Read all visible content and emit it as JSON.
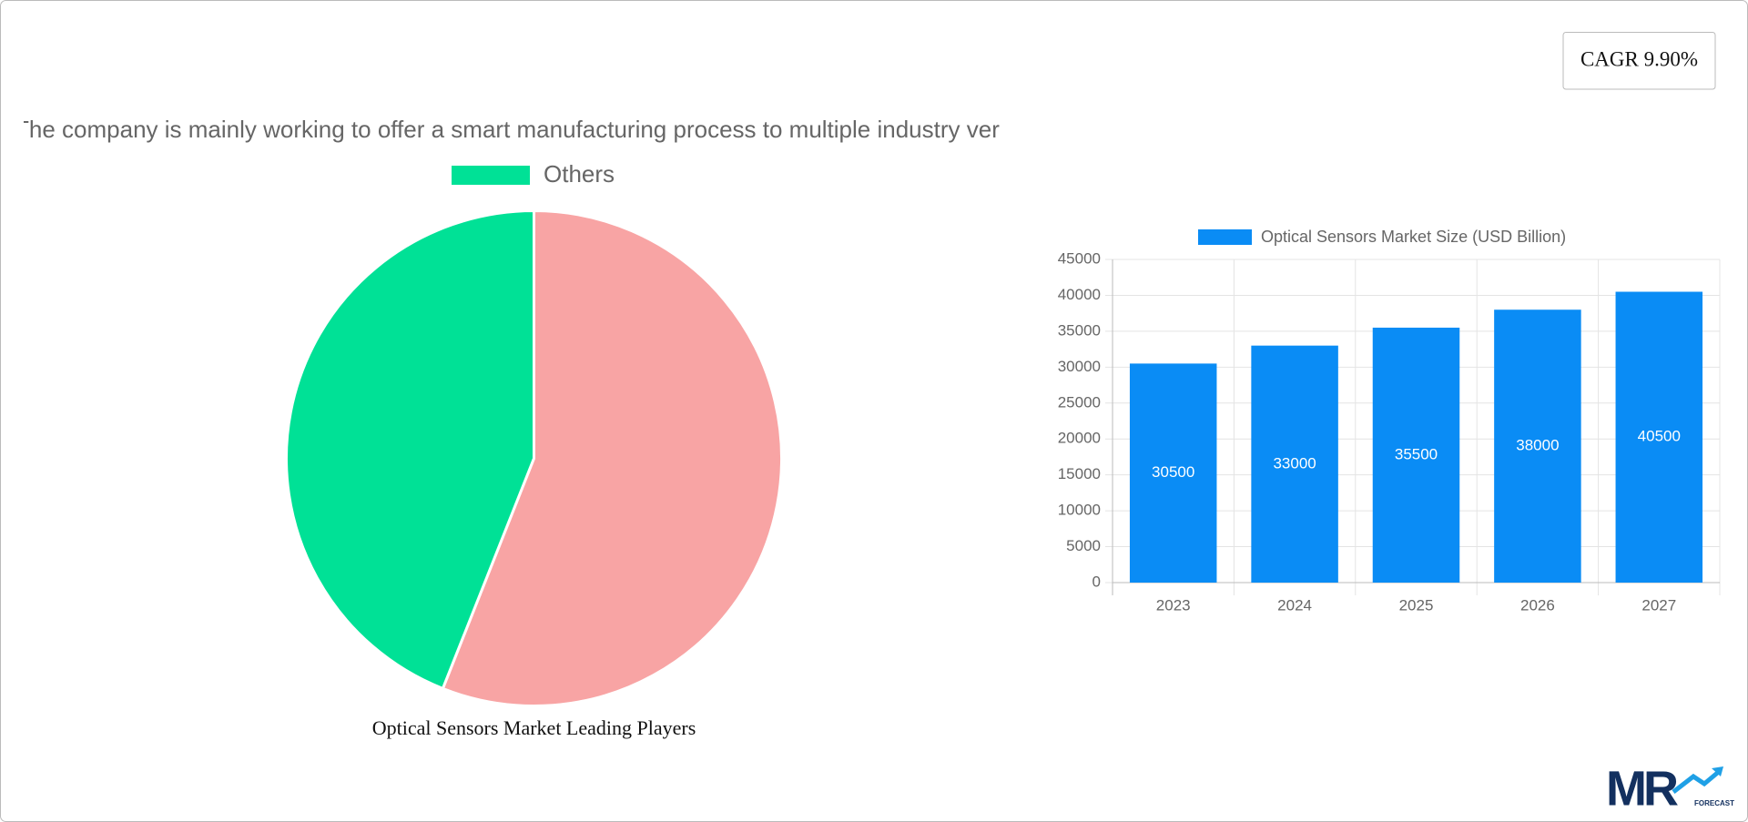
{
  "cagr": "CAGR 9.90%",
  "logo": {
    "text": "MR",
    "tagline": "FORECAST"
  },
  "chart_data": [
    {
      "type": "pie",
      "title": "Optical Sensors Market Leading Players",
      "categories": [
        "The company is mainly working to offer a smart manufacturing process to multiple industry ver",
        "Others"
      ],
      "values": [
        56,
        44
      ],
      "colors": [
        "#f8a4a4",
        "#00e196"
      ]
    },
    {
      "type": "bar",
      "categories": [
        "2023",
        "2024",
        "2025",
        "2026",
        "2027"
      ],
      "series": [
        {
          "name": "Optical Sensors Market Size (USD Billion)",
          "color": "#0a8cf5",
          "values": [
            30500,
            33000,
            35500,
            38000,
            40500
          ]
        }
      ],
      "ylim": [
        0,
        45000
      ],
      "yticks": [
        0,
        5000,
        10000,
        15000,
        20000,
        25000,
        30000,
        35000,
        40000,
        45000
      ],
      "grid": true
    }
  ]
}
